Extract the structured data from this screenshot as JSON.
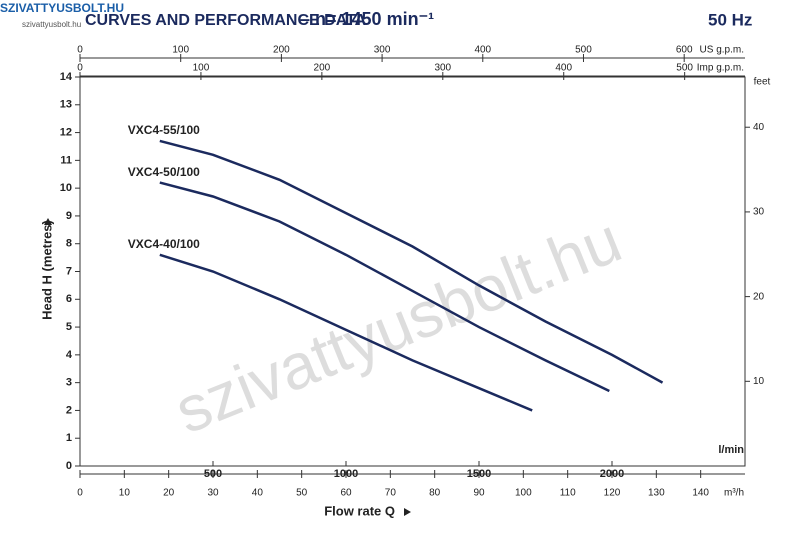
{
  "header": {
    "logo": "SZIVATTYUSBOLT.HU",
    "logo_sub": "szivattyusbolt.hu",
    "watermark": "szivattyusbolt.hu"
  },
  "chart_data": {
    "type": "line",
    "title": "CURVES AND PERFORMANCE DATA",
    "subtitle": "– n= 1450 min⁻¹",
    "frequency": "50 Hz",
    "xlabel": "Flow rate Q",
    "x_unit": "l/min",
    "ylabel": "Head H (metres)",
    "y2label": "feet",
    "xlim": [
      0,
      2500
    ],
    "xticks": [
      500,
      1000,
      1500,
      2000
    ],
    "ylim": [
      0,
      14
    ],
    "yticks": [
      0,
      1,
      2,
      3,
      4,
      5,
      6,
      7,
      8,
      9,
      10,
      11,
      12,
      13,
      14
    ],
    "y2lim": [
      0,
      45.93
    ],
    "y2ticks": [
      10,
      20,
      30,
      40
    ],
    "x_axes": [
      {
        "label": "US g.p.m.",
        "lim": [
          0,
          660.4
        ],
        "ticks": [
          0,
          100,
          200,
          300,
          400,
          500,
          600
        ]
      },
      {
        "label": "Imp g.p.m.",
        "lim": [
          0,
          549.9
        ],
        "ticks": [
          0,
          100,
          200,
          300,
          400,
          500
        ]
      },
      {
        "label": "m³/h",
        "lim": [
          0,
          150
        ],
        "ticks": [
          0,
          10,
          20,
          30,
          40,
          50,
          60,
          70,
          80,
          90,
          100,
          110,
          120,
          130,
          140
        ]
      }
    ],
    "series": [
      {
        "name": "VXC4-55/100",
        "color": "#1b2a5e",
        "x": [
          300,
          500,
          750,
          1000,
          1250,
          1500,
          1750,
          2000,
          2190
        ],
        "values": [
          11.7,
          11.2,
          10.3,
          9.1,
          7.9,
          6.5,
          5.2,
          4.0,
          3.0
        ]
      },
      {
        "name": "VXC4-50/100",
        "color": "#1b2a5e",
        "x": [
          300,
          500,
          750,
          1000,
          1250,
          1500,
          1750,
          1990
        ],
        "values": [
          10.2,
          9.7,
          8.8,
          7.6,
          6.3,
          5.0,
          3.8,
          2.7
        ]
      },
      {
        "name": "VXC4-40/100",
        "color": "#1b2a5e",
        "x": [
          300,
          500,
          750,
          1000,
          1250,
          1500,
          1700
        ],
        "values": [
          7.6,
          7.0,
          6.0,
          4.9,
          3.8,
          2.8,
          2.0
        ]
      }
    ]
  }
}
